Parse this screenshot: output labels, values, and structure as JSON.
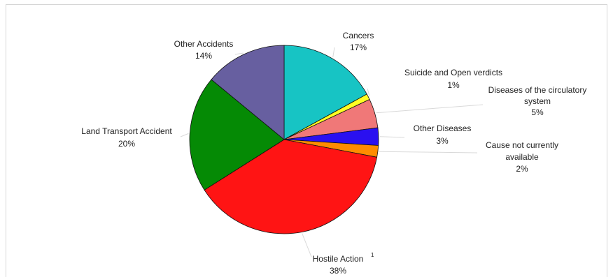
{
  "chart_data": {
    "type": "pie",
    "title": "",
    "slices": [
      {
        "label": "Cancers",
        "percent_label": "17%",
        "value": 17,
        "color": "#17C4C4"
      },
      {
        "label": "Suicide and Open verdicts",
        "percent_label": "1%",
        "value": 1,
        "color": "#FFFF22"
      },
      {
        "label": "Diseases of the circulatory system",
        "percent_label": "5%",
        "value": 5,
        "color": "#F07878"
      },
      {
        "label": "Other Diseases",
        "percent_label": "3%",
        "value": 3,
        "color": "#2A10F0"
      },
      {
        "label": "Cause not currently available",
        "percent_label": "2%",
        "value": 2,
        "color": "#FF8C00"
      },
      {
        "label": "Hostile Action",
        "label_note": "1",
        "percent_label": "38%",
        "value": 38,
        "color": "#FF1414"
      },
      {
        "label": "Land Transport Accident",
        "percent_label": "20%",
        "value": 20,
        "color": "#058A05"
      },
      {
        "label": "Other Accidents",
        "percent_label": "14%",
        "value": 14,
        "color": "#675FA0"
      }
    ]
  }
}
